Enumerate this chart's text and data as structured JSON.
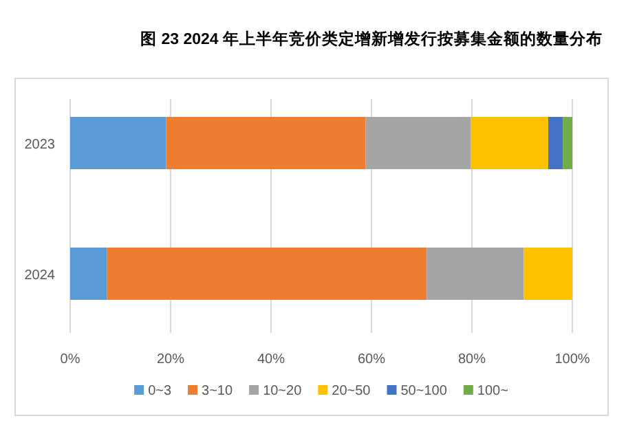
{
  "chart_data": {
    "type": "bar",
    "orientation": "horizontal",
    "stacked": true,
    "title": "图  23 2024 年上半年竞价类定增新增发行按募集金额的数量分布",
    "categories": [
      "2023",
      "2024"
    ],
    "series": [
      {
        "name": "0~3",
        "color": "#5b9bd5",
        "values": [
          19.1,
          7.3
        ]
      },
      {
        "name": "3~10",
        "color": "#ed7d31",
        "values": [
          39.7,
          63.7
        ]
      },
      {
        "name": "10~20",
        "color": "#a5a5a5",
        "values": [
          21.0,
          19.3
        ]
      },
      {
        "name": "20~50",
        "color": "#ffc000",
        "values": [
          15.4,
          9.7
        ]
      },
      {
        "name": "50~100",
        "color": "#4472c4",
        "values": [
          2.9,
          0
        ]
      },
      {
        "name": "100~",
        "color": "#70ad47",
        "values": [
          1.9,
          0
        ]
      }
    ],
    "xlim": [
      0,
      100
    ],
    "xticks": [
      {
        "value": 0,
        "label": "0%"
      },
      {
        "value": 20,
        "label": "20%"
      },
      {
        "value": 40,
        "label": "40%"
      },
      {
        "value": 60,
        "label": "60%"
      },
      {
        "value": 80,
        "label": "80%"
      },
      {
        "value": 100,
        "label": "100%"
      }
    ],
    "grid": "x",
    "legend": "bottom"
  }
}
